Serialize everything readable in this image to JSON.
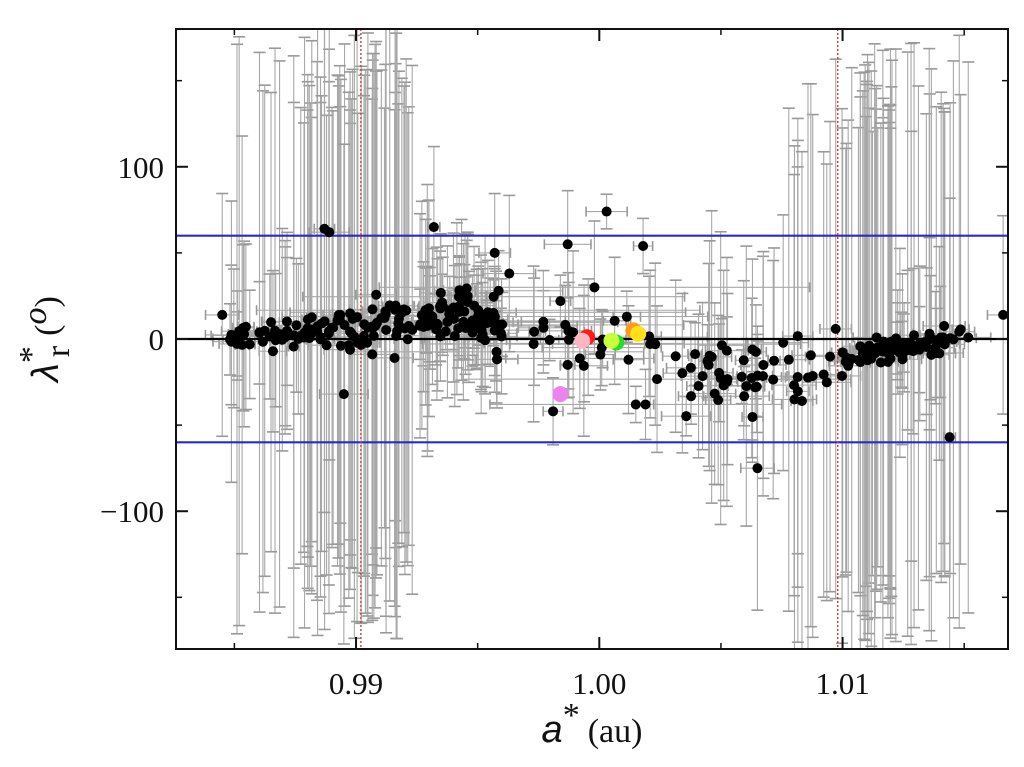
{
  "chart_data": {
    "type": "scatter",
    "title": "",
    "xlabel": {
      "symbol": "a",
      "sup": "*",
      "unit": "(au)"
    },
    "ylabel": {
      "symbol": "λ",
      "sup": "*",
      "sub": "r",
      "unit": "(",
      "unit_sup": "o",
      "unit_close": ")"
    },
    "xlim": [
      0.9826,
      1.0168
    ],
    "ylim": [
      -180,
      180
    ],
    "x_ticks": [
      0.99,
      1.0,
      1.01
    ],
    "x_tick_labels": [
      "0.99",
      "1.00",
      "1.01"
    ],
    "y_ticks": [
      100,
      0,
      -100
    ],
    "y_tick_labels": [
      "100",
      "0",
      "−100"
    ],
    "grid": false,
    "reference_lines": {
      "horizontal_blue": [
        60,
        -60
      ],
      "horizontal_black": [
        0
      ],
      "vertical_red_dotted": [
        0.9902,
        1.0098
      ]
    },
    "colors": {
      "points": "#000000",
      "error_bars": "#a8a8a8",
      "blue_lines": "#2b2bc4",
      "red_lines": "#d23a3a",
      "zero_line": "#000000"
    },
    "highlighted_points": [
      {
        "x": 0.9995,
        "y": 1,
        "color": "#ff1a1a"
      },
      {
        "x": 0.9993,
        "y": -1,
        "color": "#ffb6c1"
      },
      {
        "x": 1.0007,
        "y": -2,
        "color": "#22dd22"
      },
      {
        "x": 1.0005,
        "y": -1,
        "color": "#c8ff3c"
      },
      {
        "x": 1.0014,
        "y": 5,
        "color": "#ff9a1a"
      },
      {
        "x": 1.0016,
        "y": 3,
        "color": "#ffe01a"
      },
      {
        "x": 0.9984,
        "y": -32,
        "color": "#ee82ee"
      }
    ],
    "generator": {
      "main_count": 330,
      "seed": 7,
      "extra_black_points": [
        {
          "x": 0.9987,
          "y": 55
        },
        {
          "x": 0.9957,
          "y": 50
        },
        {
          "x": 0.9963,
          "y": 38
        },
        {
          "x": 0.9998,
          "y": 30
        },
        {
          "x": 1.0003,
          "y": 74
        },
        {
          "x": 1.0018,
          "y": 54
        },
        {
          "x": 0.9984,
          "y": 22
        },
        {
          "x": 0.9977,
          "y": 10
        },
        {
          "x": 1.0001,
          "y": -5
        },
        {
          "x": 1.0023,
          "y": -3
        },
        {
          "x": 0.9981,
          "y": -42
        },
        {
          "x": 1.0015,
          "y": -38
        },
        {
          "x": 1.0019,
          "y": -38
        },
        {
          "x": 1.0012,
          "y": -12
        },
        {
          "x": 0.9987,
          "y": -15
        },
        {
          "x": 0.9932,
          "y": 65
        },
        {
          "x": 0.9887,
          "y": 64
        },
        {
          "x": 0.9889,
          "y": 62
        },
        {
          "x": 0.9895,
          "y": -32
        },
        {
          "x": 1.0144,
          "y": -57
        },
        {
          "x": 1.0065,
          "y": -75
        },
        {
          "x": 1.0166,
          "y": 14
        },
        {
          "x": 0.9845,
          "y": 14
        }
      ]
    }
  }
}
